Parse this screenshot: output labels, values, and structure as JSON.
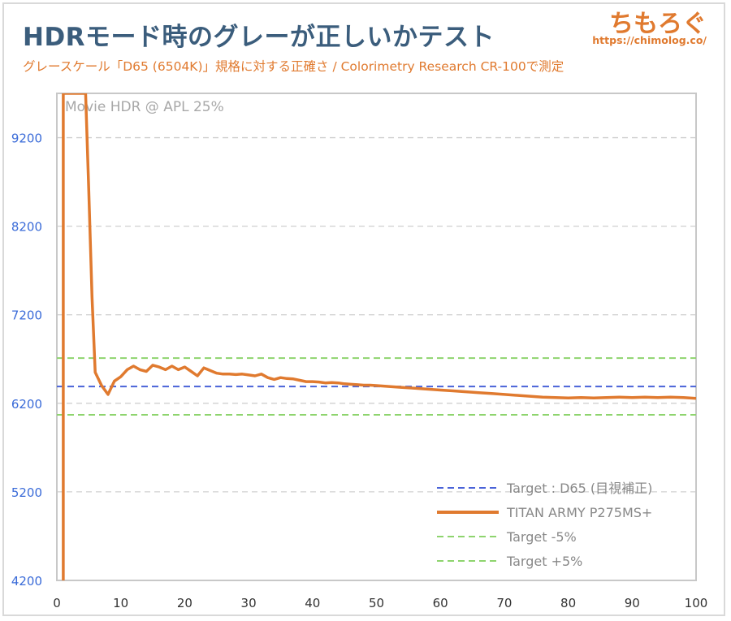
{
  "header": {
    "title": "HDRモード時のグレーが正しいかテスト",
    "subtitle": "グレースケール「D65 (6504K)」規格に対する正確さ / Colorimetry Research CR-100で測定",
    "logo_text": "ちもろぐ",
    "logo_url": "https://chimolog.co/"
  },
  "colors": {
    "accent": "#e07a2f",
    "title": "#3b5d7c",
    "target_line": "#4a63d8",
    "tolerance_line": "#8ed46e",
    "y_tick": "#3a6bd8"
  },
  "chart_data": {
    "type": "line",
    "annotation": "Movie HDR @ APL 25%",
    "xlim": [
      0,
      100
    ],
    "ylim": [
      4200,
      9700
    ],
    "x_ticks": [
      0,
      10,
      20,
      30,
      40,
      50,
      60,
      70,
      80,
      90,
      100
    ],
    "y_ticks": [
      4200,
      5200,
      6200,
      7200,
      8200,
      9200
    ],
    "grid": "horizontal dashed",
    "legend_position": "bottom-right",
    "legend": [
      {
        "label": "Target : D65 (目視補正)",
        "style": "dashed",
        "color": "#4a63d8"
      },
      {
        "label": "TITAN ARMY P275MS+",
        "style": "solid",
        "color": "#e07a2f"
      },
      {
        "label": "Target -5%",
        "style": "dashed",
        "color": "#8ed46e"
      },
      {
        "label": "Target +5%",
        "style": "dashed",
        "color": "#8ed46e"
      }
    ],
    "reference_lines": [
      {
        "name": "Target : D65 (目視補正)",
        "y": 6390
      },
      {
        "name": "Target -5%",
        "y": 6070
      },
      {
        "name": "Target +5%",
        "y": 6710
      }
    ],
    "series": [
      {
        "name": "TITAN ARMY P275MS+",
        "points": [
          [
            1,
            4200
          ],
          [
            1,
            9700
          ],
          [
            4.5,
            9700
          ],
          [
            5,
            8600
          ],
          [
            5.5,
            7400
          ],
          [
            6,
            6550
          ],
          [
            7,
            6400
          ],
          [
            8,
            6300
          ],
          [
            9,
            6450
          ],
          [
            10,
            6500
          ],
          [
            11,
            6580
          ],
          [
            12,
            6620
          ],
          [
            13,
            6580
          ],
          [
            14,
            6560
          ],
          [
            15,
            6630
          ],
          [
            16,
            6610
          ],
          [
            17,
            6580
          ],
          [
            18,
            6620
          ],
          [
            19,
            6580
          ],
          [
            20,
            6610
          ],
          [
            21,
            6560
          ],
          [
            22,
            6510
          ],
          [
            23,
            6600
          ],
          [
            24,
            6570
          ],
          [
            25,
            6540
          ],
          [
            26,
            6530
          ],
          [
            27,
            6530
          ],
          [
            28,
            6525
          ],
          [
            29,
            6530
          ],
          [
            30,
            6520
          ],
          [
            31,
            6510
          ],
          [
            32,
            6530
          ],
          [
            33,
            6490
          ],
          [
            34,
            6470
          ],
          [
            35,
            6490
          ],
          [
            36,
            6480
          ],
          [
            37,
            6475
          ],
          [
            38,
            6460
          ],
          [
            39,
            6445
          ],
          [
            40,
            6445
          ],
          [
            41,
            6440
          ],
          [
            42,
            6430
          ],
          [
            43,
            6435
          ],
          [
            44,
            6430
          ],
          [
            45,
            6420
          ],
          [
            46,
            6415
          ],
          [
            47,
            6410
          ],
          [
            48,
            6405
          ],
          [
            49,
            6405
          ],
          [
            50,
            6400
          ],
          [
            52,
            6390
          ],
          [
            54,
            6380
          ],
          [
            56,
            6370
          ],
          [
            58,
            6360
          ],
          [
            60,
            6350
          ],
          [
            62,
            6340
          ],
          [
            64,
            6330
          ],
          [
            66,
            6320
          ],
          [
            68,
            6310
          ],
          [
            70,
            6300
          ],
          [
            72,
            6290
          ],
          [
            74,
            6280
          ],
          [
            76,
            6270
          ],
          [
            78,
            6265
          ],
          [
            80,
            6260
          ],
          [
            82,
            6265
          ],
          [
            84,
            6260
          ],
          [
            86,
            6265
          ],
          [
            88,
            6270
          ],
          [
            90,
            6265
          ],
          [
            92,
            6270
          ],
          [
            94,
            6265
          ],
          [
            96,
            6270
          ],
          [
            98,
            6265
          ],
          [
            100,
            6255
          ]
        ]
      }
    ]
  }
}
